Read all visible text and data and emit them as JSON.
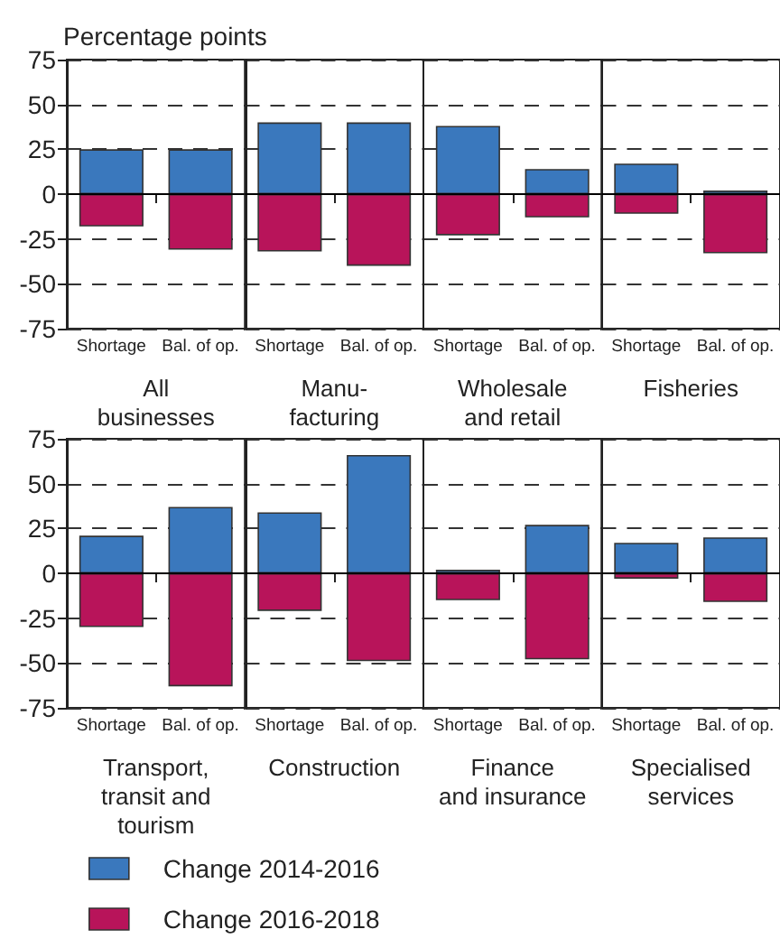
{
  "chart_data": [
    {
      "type": "bar",
      "ylabel": "Percentage points",
      "xlabel": "All\nbusinesses",
      "categories": [
        "Shortage",
        "Bal. of op."
      ],
      "stacked": true,
      "ylim": [
        -75,
        75
      ],
      "yticks": [
        -75,
        -50,
        -25,
        0,
        25,
        50,
        75
      ],
      "grid": "y",
      "ref_lines": [
        {
          "axis": "y",
          "value": 0
        }
      ],
      "series": [
        {
          "color": "#3a78bd",
          "values": [
            25,
            25
          ]
        },
        {
          "color": "#b8145a",
          "values": [
            -18,
            -31
          ]
        }
      ]
    },
    {
      "type": "bar",
      "xlabel": "Manu-\nfacturing",
      "categories": [
        "Shortage",
        "Bal. of op."
      ],
      "stacked": true,
      "ylim": [
        -75,
        75
      ],
      "yticks": [
        -75,
        -50,
        -25,
        0,
        25,
        50,
        75
      ],
      "grid": "y",
      "tick_labels": "x",
      "ref_lines": [
        {
          "axis": "y",
          "value": 0
        }
      ],
      "series": [
        {
          "color": "#3a78bd",
          "values": [
            40,
            40
          ]
        },
        {
          "color": "#b8145a",
          "values": [
            -32,
            -40
          ]
        }
      ]
    },
    {
      "type": "bar",
      "xlabel": "Wholesale\nand retail",
      "categories": [
        "Shortage",
        "Bal. of op."
      ],
      "stacked": true,
      "ylim": [
        -75,
        75
      ],
      "yticks": [
        -75,
        -50,
        -25,
        0,
        25,
        50,
        75
      ],
      "grid": "y",
      "tick_labels": "x",
      "ref_lines": [
        {
          "axis": "y",
          "value": 0
        }
      ],
      "series": [
        {
          "color": "#3a78bd",
          "values": [
            38,
            14
          ]
        },
        {
          "color": "#b8145a",
          "values": [
            -23,
            -13
          ]
        }
      ]
    },
    {
      "type": "bar",
      "xlabel": "Fisheries",
      "categories": [
        "Shortage",
        "Bal. of op."
      ],
      "stacked": true,
      "ylim": [
        -75,
        75
      ],
      "yticks": [
        -75,
        -50,
        -25,
        0,
        25,
        50,
        75
      ],
      "grid": "y",
      "tick_labels": "x",
      "ref_lines": [
        {
          "axis": "y",
          "value": 0
        }
      ],
      "series": [
        {
          "color": "#3a78bd",
          "values": [
            17,
            2
          ]
        },
        {
          "color": "#b8145a",
          "values": [
            -11,
            -33
          ]
        }
      ]
    },
    {
      "type": "bar",
      "xlabel": "Transport,\ntransit and\ntourism",
      "categories": [
        "Shortage",
        "Bal. of op."
      ],
      "stacked": true,
      "ylim": [
        -75,
        75
      ],
      "yticks": [
        -75,
        -50,
        -25,
        0,
        25,
        50,
        75
      ],
      "grid": "y",
      "ref_lines": [
        {
          "axis": "y",
          "value": 0
        }
      ],
      "series": [
        {
          "color": "#3a78bd",
          "values": [
            21,
            37
          ]
        },
        {
          "color": "#b8145a",
          "values": [
            -30,
            -63
          ]
        }
      ]
    },
    {
      "type": "bar",
      "xlabel": "Construction",
      "categories": [
        "Shortage",
        "Bal. of op."
      ],
      "stacked": true,
      "ylim": [
        -75,
        75
      ],
      "yticks": [
        -75,
        -50,
        -25,
        0,
        25,
        50,
        75
      ],
      "grid": "y",
      "tick_labels": "x",
      "ref_lines": [
        {
          "axis": "y",
          "value": 0
        }
      ],
      "series": [
        {
          "color": "#3a78bd",
          "values": [
            34,
            66
          ]
        },
        {
          "color": "#b8145a",
          "values": [
            -21,
            -49
          ]
        }
      ]
    },
    {
      "type": "bar",
      "xlabel": "Finance\nand insurance",
      "categories": [
        "Shortage",
        "Bal. of op."
      ],
      "stacked": true,
      "ylim": [
        -75,
        75
      ],
      "yticks": [
        -75,
        -50,
        -25,
        0,
        25,
        50,
        75
      ],
      "grid": "y",
      "tick_labels": "x",
      "ref_lines": [
        {
          "axis": "y",
          "value": 0
        }
      ],
      "series": [
        {
          "color": "#3a78bd",
          "values": [
            2,
            27
          ]
        },
        {
          "color": "#b8145a",
          "values": [
            -15,
            -48
          ]
        }
      ]
    },
    {
      "type": "bar",
      "xlabel": "Specialised\nservices",
      "categories": [
        "Shortage",
        "Bal. of op."
      ],
      "stacked": true,
      "ylim": [
        -75,
        75
      ],
      "yticks": [
        -75,
        -50,
        -25,
        0,
        25,
        50,
        75
      ],
      "grid": "y",
      "tick_labels": "x",
      "ref_lines": [
        {
          "axis": "y",
          "value": 0
        }
      ],
      "legend": "bottom",
      "series": [
        {
          "name": "Change 2014-2016",
          "color": "#3a78bd",
          "values": [
            17,
            20
          ]
        },
        {
          "name": "Change 2016-2018",
          "color": "#b8145a",
          "values": [
            -3,
            -16
          ]
        }
      ]
    }
  ]
}
